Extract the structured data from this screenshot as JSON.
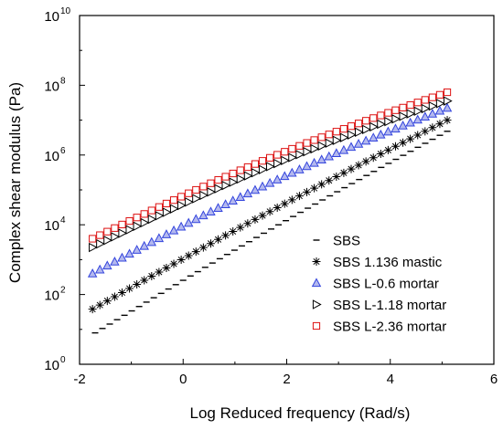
{
  "chart_data": {
    "type": "scatter",
    "xlabel": "Log Reduced frequency (Rad/s)",
    "ylabel": "Complex shear modulus (Pa)",
    "xlim": [
      -2,
      6
    ],
    "ylim": [
      1,
      10000000000
    ],
    "yscale": "log",
    "x_ticks": [
      {
        "value": -2,
        "label": "-2"
      },
      {
        "value": 0,
        "label": "0"
      },
      {
        "value": 2,
        "label": "2"
      },
      {
        "value": 4,
        "label": "4"
      },
      {
        "value": 6,
        "label": "6"
      }
    ],
    "y_ticks": [
      {
        "exp": 0,
        "base": "10",
        "sup": "0"
      },
      {
        "exp": 2,
        "base": "10",
        "sup": "2"
      },
      {
        "exp": 4,
        "base": "10",
        "sup": "4"
      },
      {
        "exp": 6,
        "base": "10",
        "sup": "6"
      },
      {
        "exp": 8,
        "base": "10",
        "sup": "8"
      },
      {
        "exp": 10,
        "base": "10",
        "sup": "10"
      }
    ],
    "grid": false,
    "legend_position": "bottom-right",
    "series": [
      {
        "name": "SBS",
        "marker": "dash",
        "color": "#000000",
        "x_start": -1.7,
        "x_end": 5.1,
        "n": 49,
        "log10_y_start": 0.9,
        "log10_y_end": 6.68
      },
      {
        "name": "SBS 1.136 mastic",
        "marker": "asterisk",
        "color": "#000000",
        "x_start": -1.75,
        "x_end": 5.1,
        "n": 49,
        "log10_y_start": 1.58,
        "log10_y_end": 7.0
      },
      {
        "name": "SBS L-0.6 mortar",
        "marker": "triangle-up",
        "color": "#3344dd",
        "x_start": -1.75,
        "x_end": 5.1,
        "n": 49,
        "log10_y_start": 2.6,
        "log10_y_end": 7.35
      },
      {
        "name": "SBS L-1.18 mortar",
        "marker": "triangle-right",
        "color": "#000000",
        "x_start": -1.75,
        "x_end": 5.1,
        "n": 49,
        "log10_y_start": 3.35,
        "log10_y_end": 7.55
      },
      {
        "name": "SBS L-2.36 mortar",
        "marker": "square",
        "color": "#dd1111",
        "x_start": -1.75,
        "x_end": 5.1,
        "n": 49,
        "log10_y_start": 3.6,
        "log10_y_end": 7.8
      }
    ]
  }
}
